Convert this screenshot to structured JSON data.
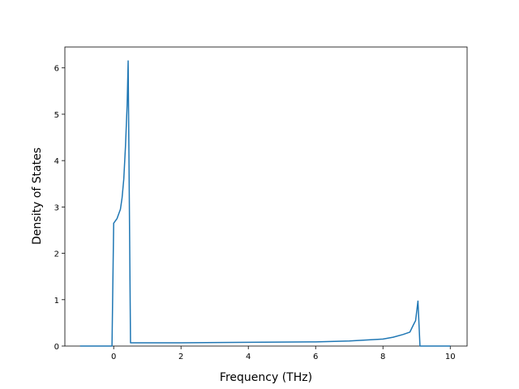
{
  "chart_data": {
    "type": "line",
    "x_label": "Frequency (THz)",
    "y_label": "Density of States",
    "x": [
      -1,
      -0.05,
      0,
      0.1,
      0.2,
      0.25,
      0.3,
      0.35,
      0.4,
      0.43,
      0.5,
      2,
      4,
      6,
      7,
      8,
      8.3,
      8.6,
      8.8,
      8.9,
      8.97,
      9.04,
      9.1,
      10
    ],
    "series": [
      {
        "color": "#1f77b4",
        "values": [
          0,
          0,
          2.65,
          2.75,
          2.95,
          3.2,
          3.6,
          4.3,
          5.2,
          6.15,
          0.07,
          0.07,
          0.08,
          0.09,
          0.11,
          0.15,
          0.19,
          0.25,
          0.3,
          0.45,
          0.55,
          0.97,
          0,
          0
        ]
      }
    ],
    "xlim": [
      -1.45,
      10.5
    ],
    "ylim": [
      0,
      6.45
    ],
    "xticks": [
      0,
      2,
      4,
      6,
      8,
      10
    ],
    "yticks": [
      0,
      1,
      2,
      3,
      4,
      5,
      6
    ]
  }
}
